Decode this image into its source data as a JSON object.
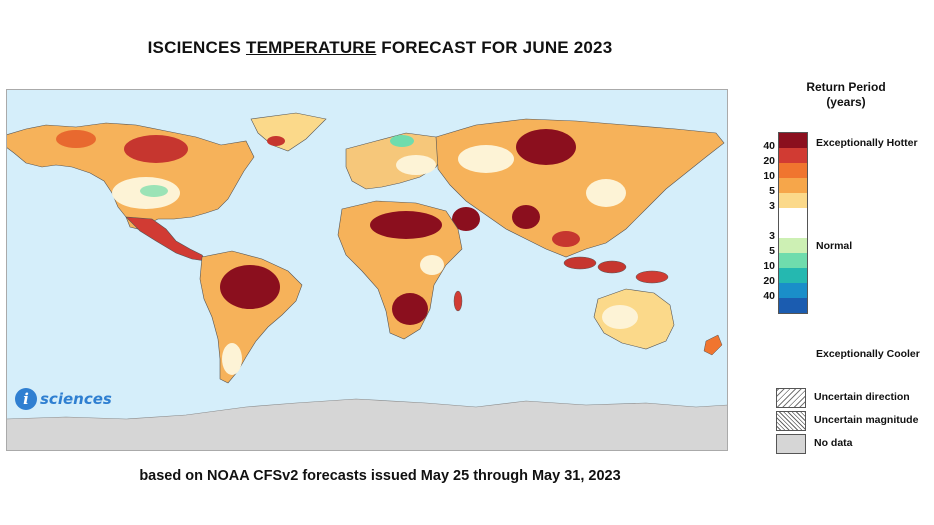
{
  "title": {
    "pre": "ISCIENCES ",
    "underlined": "TEMPERATURE",
    "post": " FORECAST FOR JUNE 2023"
  },
  "subtitle": "based on NOAA CFSv2 forecasts issued May 25 through May 31, 2023",
  "logo": {
    "letter": "i",
    "text": "sciences"
  },
  "legend": {
    "title_line1": "Return Period",
    "title_line2": "(years)",
    "hot_ticks": [
      "40",
      "20",
      "10",
      "5",
      "3"
    ],
    "cool_ticks": [
      "3",
      "5",
      "10",
      "20",
      "40"
    ],
    "label_hot": "Exceptionally Hotter",
    "label_normal": "Normal",
    "label_cool": "Exceptionally Cooler",
    "colors": [
      "#8b0f1e",
      "#d13b33",
      "#f0752f",
      "#f6a64a",
      "#fbd98a",
      "#ffffff",
      "#ffffff",
      "#cdf0b4",
      "#6fdcad",
      "#25b8b0",
      "#1a8ec9",
      "#1b5cb0"
    ],
    "hatch": [
      {
        "label": "Uncertain direction"
      },
      {
        "label": "Uncertain magnitude"
      },
      {
        "label": "No data"
      }
    ]
  },
  "map": {
    "ocean_color": "#d5eefa",
    "land_color": "#f6c77a",
    "nodata_color": "#d6d6d6"
  }
}
